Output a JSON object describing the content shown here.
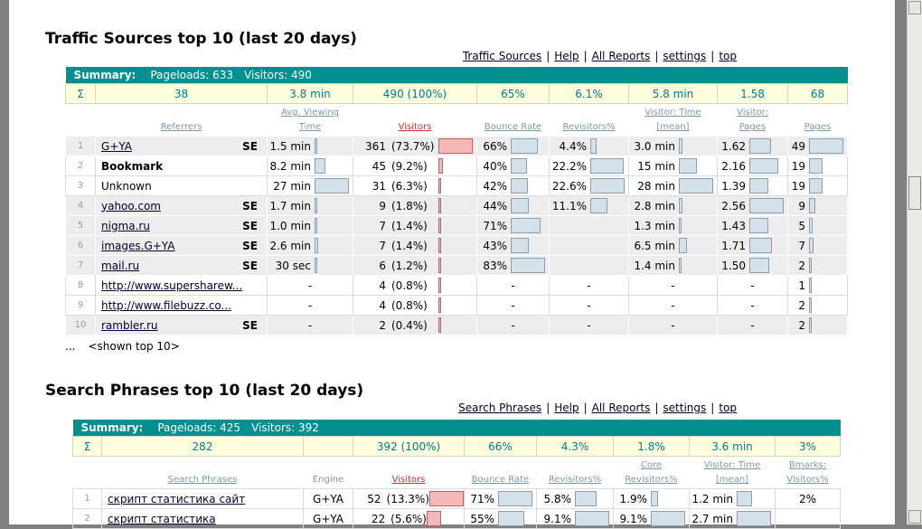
{
  "sections": [
    {
      "title": "Traffic Sources top 10 (last 20 days)",
      "links": [
        "Traffic Sources",
        "Help",
        "All Reports",
        "settings",
        "top"
      ],
      "separator": "|",
      "summary": {
        "label": "Summary:",
        "pageloads": "Pageloads: 633",
        "visitors": "Visitors: 490"
      },
      "totals": [
        "Σ",
        "38",
        "3.8 min",
        "490 (100%)",
        "65%",
        "6.1%",
        "5.8 min",
        "1.58",
        "68"
      ],
      "headers": [
        null,
        [
          "Referrers"
        ],
        [
          "Avg. Viewing",
          "Time"
        ],
        [
          "Visitors"
        ],
        [
          "Bounce Rate"
        ],
        [
          "Revisitors%"
        ],
        [
          "Visitor: Time",
          "[mean]"
        ],
        [
          "Visitor:",
          "Pages"
        ],
        [
          "Pages"
        ]
      ],
      "rows": [
        {
          "n": "1",
          "tag": "SE",
          "cells": [
            "G+YA",
            "1.5 min",
            "361",
            "(73.7%)",
            "66%",
            "4.4%",
            "3.0 min",
            "1.62",
            "49"
          ]
        },
        {
          "n": "2",
          "kind": "bold",
          "cells": [
            "Bookmark",
            "8.2 min",
            "45",
            "(9.2%)",
            "40%",
            "22.2%",
            "15 min",
            "2.16",
            "19"
          ]
        },
        {
          "n": "3",
          "kind": "plain",
          "cells": [
            "Unknown",
            "27 min",
            "31",
            "(6.3%)",
            "42%",
            "22.6%",
            "28 min",
            "1.39",
            "19"
          ]
        },
        {
          "n": "4",
          "tag": "SE",
          "cells": [
            "yahoo.com",
            "1.7 min",
            "9",
            "(1.8%)",
            "44%",
            "11.1%",
            "2.8 min",
            "2.56",
            "9"
          ]
        },
        {
          "n": "5",
          "tag": "SE",
          "cells": [
            "nigma.ru",
            "1.0 min",
            "7",
            "(1.4%)",
            "71%",
            null,
            "1.3 min",
            "1.43",
            "5"
          ]
        },
        {
          "n": "6",
          "tag": "SE",
          "cells": [
            "images.G+YA",
            "2.6 min",
            "7",
            "(1.4%)",
            "43%",
            null,
            "6.5 min",
            "1.71",
            "7"
          ]
        },
        {
          "n": "7",
          "tag": "SE",
          "cells": [
            "mail.ru",
            "30 sec",
            "6",
            "(1.2%)",
            "83%",
            null,
            "1.4 min",
            "1.50",
            "2"
          ]
        },
        {
          "n": "8",
          "cells": [
            "http://www.supersharew...",
            "-",
            "4",
            "(0.8%)",
            "-",
            "-",
            "-",
            "-",
            "1"
          ]
        },
        {
          "n": "9",
          "cells": [
            "http://www.filebuzz.co...",
            "-",
            "4",
            "(0.8%)",
            "-",
            "-",
            "-",
            "-",
            "2"
          ]
        },
        {
          "n": "10",
          "tag": "SE",
          "cells": [
            "rambler.ru",
            "-",
            "2",
            "(0.4%)",
            "-",
            "-",
            "-",
            "-",
            "2"
          ]
        }
      ],
      "footer": [
        "...",
        "<shown top 10>"
      ]
    },
    {
      "title": "Search Phrases top 10 (last 20 days)",
      "links": [
        "Search Phrases",
        "Help",
        "All Reports",
        "settings",
        "top"
      ],
      "separator": "|",
      "summary": {
        "label": "Summary:",
        "pageloads": "Pageloads: 425",
        "visitors": "Visitors: 392"
      },
      "totals": [
        "Σ",
        "282",
        null,
        "392 (100%)",
        "66%",
        "4.3%",
        "1.8%",
        "3.6 min",
        "3%"
      ],
      "headers": [
        null,
        [
          "Search Phrases"
        ],
        [
          "Engine"
        ],
        [
          "Visitors"
        ],
        [
          "Bounce Rate"
        ],
        [
          "Revisitors%"
        ],
        [
          "Core",
          "Revisitors%"
        ],
        [
          "Visitor: Time",
          "[mean]"
        ],
        [
          "Bmarks:",
          "Visitors%"
        ]
      ],
      "rows": [
        {
          "n": "1",
          "cells": [
            "скрипт статистика сайт",
            "G+YA",
            "52",
            "(13.3%)",
            "71%",
            "5.8%",
            "1.9%",
            "1.2 min",
            "2%"
          ]
        },
        {
          "n": "2",
          "cells": [
            "скрипт статистика",
            "G+YA",
            "22",
            "(5.6%)",
            "55%",
            "9.1%",
            "9.1%",
            "2.7 min",
            null
          ]
        }
      ]
    }
  ]
}
